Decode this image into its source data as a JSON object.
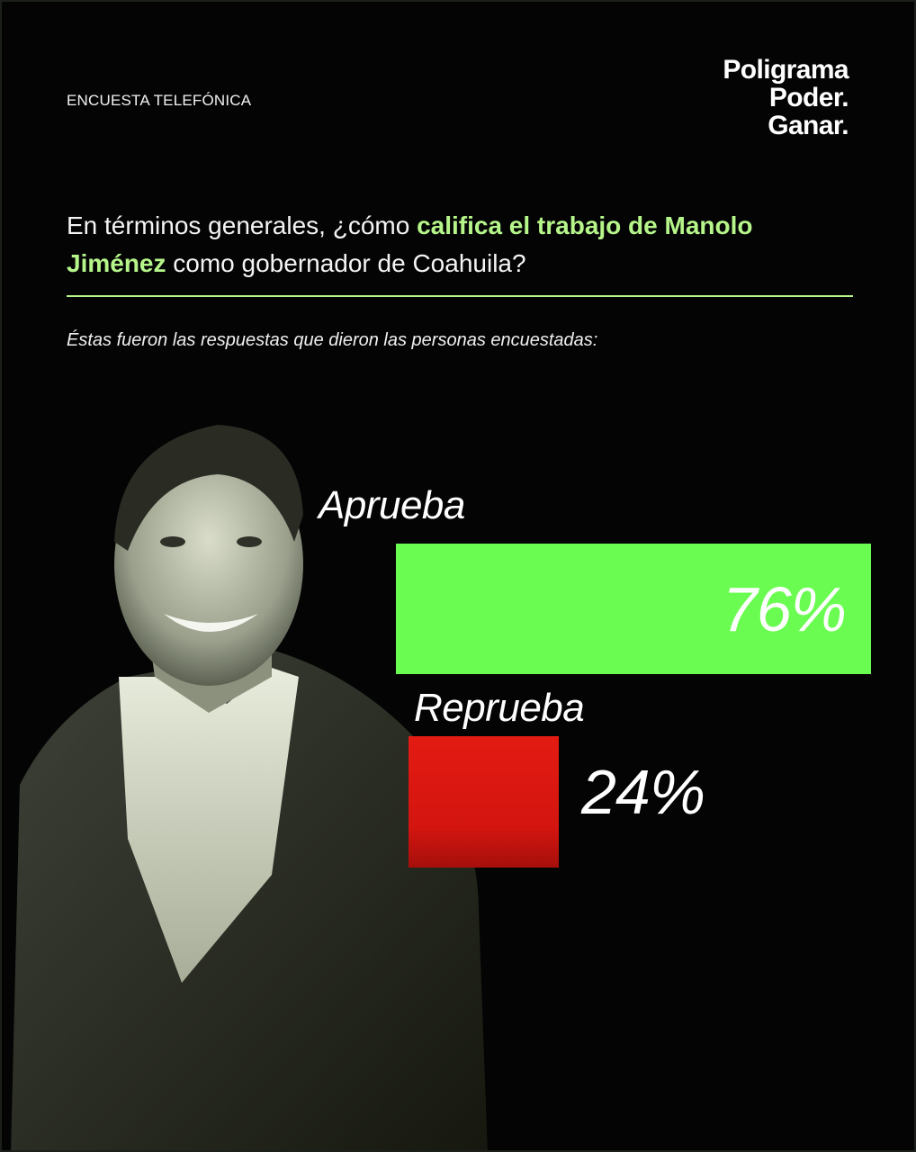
{
  "header": {
    "tag": "ENCUESTA TELEFÓNICA",
    "brand_lines": [
      "Poligrama",
      "Poder.",
      "Ganar."
    ]
  },
  "question": {
    "part1": "En términos generales, ¿cómo ",
    "highlight": "califica el trabajo de Manolo Jiménez",
    "part2": " como gobernador de Coahuila?"
  },
  "subtitle": "Éstas fueron las respuestas que dieron las personas encuestadas:",
  "colors": {
    "highlight": "#b6f58a",
    "approve": "#6bfc52",
    "reject": "#e31b12",
    "background": "#030403"
  },
  "chart_data": {
    "type": "bar",
    "orientation": "horizontal",
    "categories": [
      "Aprueba",
      "Reprueba"
    ],
    "values": [
      76,
      24
    ],
    "value_labels": [
      "76%",
      "24%"
    ],
    "unit": "%",
    "xlim": [
      0,
      100
    ]
  }
}
